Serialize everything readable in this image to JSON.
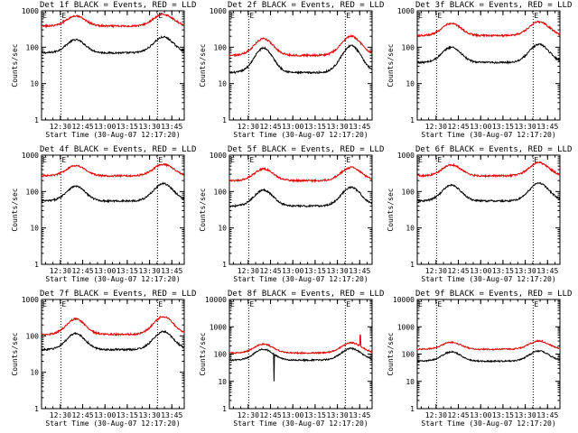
{
  "figure": {
    "x_start_label": "Start Time (30-Aug-07 12:17:20)",
    "y_label": "Counts/sec",
    "series_names": [
      "BLACK = Events",
      "RED = LLD"
    ],
    "colors": {
      "events": "#000000",
      "lld": "#e00000",
      "background": "#ffffff"
    }
  },
  "chart_data": [
    {
      "type": "line",
      "panel": 1,
      "title": "Det 1f BLACK = Events, RED = LLD",
      "xlabel": "Start Time (30-Aug-07 12:17:20)",
      "ylabel": "Counts/sec",
      "x_unit": "minutes since 12:17:20",
      "xlim": [
        0,
        96
      ],
      "xtick_labels": [
        "12:30",
        "12:45",
        "13:00",
        "13:15",
        "13:30",
        "13:45"
      ],
      "ylim": [
        1,
        1000
      ],
      "yscale": "log",
      "ytick_labels": [
        "1",
        "10",
        "100",
        "1000"
      ],
      "markers": [
        {
          "x": 13,
          "label": "E"
        },
        {
          "x": 78,
          "label": "E"
        }
      ],
      "series": [
        {
          "name": "Events",
          "color": "#000000",
          "base": 70,
          "peak1": 160,
          "peak2": 190,
          "dips": []
        },
        {
          "name": "LLD",
          "color": "#e00000",
          "base": 380,
          "peak1": 720,
          "peak2": 800,
          "dips": []
        }
      ]
    },
    {
      "type": "line",
      "panel": 2,
      "title": "Det 2f BLACK = Events, RED = LLD",
      "xlabel": "Start Time (30-Aug-07 12:17:20)",
      "ylabel": "Counts/sec",
      "x_unit": "minutes since 12:17:20",
      "xlim": [
        0,
        96
      ],
      "xtick_labels": [
        "12:30",
        "12:45",
        "13:00",
        "13:15",
        "13:30",
        "13:45"
      ],
      "ylim": [
        1,
        1000
      ],
      "yscale": "log",
      "ytick_labels": [
        "1",
        "10",
        "100",
        "1000"
      ],
      "markers": [
        {
          "x": 13,
          "label": "E"
        },
        {
          "x": 78,
          "label": "E"
        }
      ],
      "series": [
        {
          "name": "Events",
          "color": "#000000",
          "base": 20,
          "peak1": 95,
          "peak2": 110,
          "dips": []
        },
        {
          "name": "LLD",
          "color": "#e00000",
          "base": 60,
          "peak1": 170,
          "peak2": 200,
          "dips": []
        }
      ]
    },
    {
      "type": "line",
      "panel": 3,
      "title": "Det 3f BLACK = Events, RED = LLD",
      "xlabel": "Start Time (30-Aug-07 12:17:20)",
      "ylabel": "Counts/sec",
      "x_unit": "minutes since 12:17:20",
      "xlim": [
        0,
        96
      ],
      "xtick_labels": [
        "12:30",
        "12:45",
        "13:00",
        "13:15",
        "13:30",
        "13:45"
      ],
      "ylim": [
        1,
        1000
      ],
      "yscale": "log",
      "ytick_labels": [
        "1",
        "10",
        "100",
        "1000"
      ],
      "markers": [
        {
          "x": 13,
          "label": "E"
        },
        {
          "x": 78,
          "label": "E"
        }
      ],
      "series": [
        {
          "name": "Events",
          "color": "#000000",
          "base": 38,
          "peak1": 100,
          "peak2": 120,
          "dips": []
        },
        {
          "name": "LLD",
          "color": "#e00000",
          "base": 210,
          "peak1": 450,
          "peak2": 500,
          "dips": []
        }
      ]
    },
    {
      "type": "line",
      "panel": 4,
      "title": "Det 4f BLACK = Events, RED = LLD",
      "xlabel": "Start Time (30-Aug-07 12:17:20)",
      "ylabel": "Counts/sec",
      "x_unit": "minutes since 12:17:20",
      "xlim": [
        0,
        96
      ],
      "xtick_labels": [
        "12:30",
        "12:45",
        "13:00",
        "13:15",
        "13:30",
        "13:45"
      ],
      "ylim": [
        1,
        1000
      ],
      "yscale": "log",
      "ytick_labels": [
        "1",
        "10",
        "100",
        "1000"
      ],
      "markers": [
        {
          "x": 13,
          "label": "E"
        },
        {
          "x": 78,
          "label": "E"
        }
      ],
      "series": [
        {
          "name": "Events",
          "color": "#000000",
          "base": 55,
          "peak1": 140,
          "peak2": 165,
          "dips": []
        },
        {
          "name": "LLD",
          "color": "#e00000",
          "base": 270,
          "peak1": 520,
          "peak2": 560,
          "dips": []
        }
      ]
    },
    {
      "type": "line",
      "panel": 5,
      "title": "Det 5f BLACK = Events, RED = LLD",
      "xlabel": "Start Time (30-Aug-07 12:17:20)",
      "ylabel": "Counts/sec",
      "x_unit": "minutes since 12:17:20",
      "xlim": [
        0,
        96
      ],
      "xtick_labels": [
        "12:30",
        "12:45",
        "13:00",
        "13:15",
        "13:30",
        "13:45"
      ],
      "ylim": [
        1,
        1000
      ],
      "yscale": "log",
      "ytick_labels": [
        "1",
        "10",
        "100",
        "1000"
      ],
      "markers": [
        {
          "x": 13,
          "label": "E"
        },
        {
          "x": 78,
          "label": "E"
        }
      ],
      "series": [
        {
          "name": "Events",
          "color": "#000000",
          "base": 40,
          "peak1": 110,
          "peak2": 130,
          "dips": []
        },
        {
          "name": "LLD",
          "color": "#e00000",
          "base": 200,
          "peak1": 420,
          "peak2": 460,
          "dips": []
        }
      ]
    },
    {
      "type": "line",
      "panel": 6,
      "title": "Det 6f BLACK = Events, RED = LLD",
      "xlabel": "Start Time (30-Aug-07 12:17:20)",
      "ylabel": "Counts/sec",
      "x_unit": "minutes since 12:17:20",
      "xlim": [
        0,
        96
      ],
      "xtick_labels": [
        "12:30",
        "12:45",
        "13:00",
        "13:15",
        "13:30",
        "13:45"
      ],
      "ylim": [
        1,
        1000
      ],
      "yscale": "log",
      "ytick_labels": [
        "1",
        "10",
        "100",
        "1000"
      ],
      "markers": [
        {
          "x": 13,
          "label": "E"
        },
        {
          "x": 78,
          "label": "E"
        }
      ],
      "series": [
        {
          "name": "Events",
          "color": "#000000",
          "base": 55,
          "peak1": 150,
          "peak2": 170,
          "dips": []
        },
        {
          "name": "LLD",
          "color": "#e00000",
          "base": 270,
          "peak1": 540,
          "peak2": 620,
          "dips": []
        }
      ]
    },
    {
      "type": "line",
      "panel": 7,
      "title": "Det 7f BLACK = Events, RED = LLD",
      "xlabel": "Start Time (30-Aug-07 12:17:20)",
      "ylabel": "Counts/sec",
      "x_unit": "minutes since 12:17:20",
      "xlim": [
        0,
        96
      ],
      "xtick_labels": [
        "12:30",
        "12:45",
        "13:00",
        "13:15",
        "13:30",
        "13:45"
      ],
      "ylim": [
        1,
        1000
      ],
      "yscale": "log",
      "ytick_labels": [
        "1",
        "10",
        "100",
        "1000"
      ],
      "markers": [
        {
          "x": 13,
          "label": "E"
        },
        {
          "x": 78,
          "label": "E"
        }
      ],
      "series": [
        {
          "name": "Events",
          "color": "#000000",
          "base": 42,
          "peak1": 115,
          "peak2": 130,
          "dips": []
        },
        {
          "name": "LLD",
          "color": "#e00000",
          "base": 110,
          "peak1": 290,
          "peak2": 340,
          "dips": []
        }
      ]
    },
    {
      "type": "line",
      "panel": 8,
      "title": "Det 8f BLACK = Events, RED = LLD",
      "xlabel": "Start Time (30-Aug-07 12:17:20)",
      "ylabel": "Counts/sec",
      "x_unit": "minutes since 12:17:20",
      "xlim": [
        0,
        96
      ],
      "xtick_labels": [
        "12:30",
        "12:45",
        "13:00",
        "13:15",
        "13:30",
        "13:45"
      ],
      "ylim": [
        1,
        10000
      ],
      "yscale": "log",
      "ytick_labels": [
        "1",
        "10",
        "100",
        "1000",
        "10000"
      ],
      "markers": [
        {
          "x": 13,
          "label": "E"
        },
        {
          "x": 78,
          "label": "E"
        }
      ],
      "series": [
        {
          "name": "Events",
          "color": "#000000",
          "base": 60,
          "peak1": 150,
          "peak2": 160,
          "dips": [
            {
              "x": 30,
              "value": 10
            }
          ]
        },
        {
          "name": "LLD",
          "color": "#e00000",
          "base": 110,
          "peak1": 230,
          "peak2": 260,
          "dips": [],
          "spikes": [
            {
              "x": 88,
              "value": 500
            }
          ]
        }
      ]
    },
    {
      "type": "line",
      "panel": 9,
      "title": "Det 9f BLACK = Events, RED = LLD",
      "xlabel": "Start Time (30-Aug-07 12:17:20)",
      "ylabel": "Counts/sec",
      "x_unit": "minutes since 12:17:20",
      "xlim": [
        0,
        96
      ],
      "xtick_labels": [
        "12:30",
        "12:45",
        "13:00",
        "13:15",
        "13:30",
        "13:45"
      ],
      "ylim": [
        1,
        10000
      ],
      "yscale": "log",
      "ytick_labels": [
        "1",
        "10",
        "100",
        "1000",
        "10000"
      ],
      "markers": [
        {
          "x": 13,
          "label": "E"
        },
        {
          "x": 78,
          "label": "E"
        }
      ],
      "series": [
        {
          "name": "Events",
          "color": "#000000",
          "base": 55,
          "peak1": 120,
          "peak2": 130,
          "dips": []
        },
        {
          "name": "LLD",
          "color": "#e00000",
          "base": 150,
          "peak1": 270,
          "peak2": 300,
          "dips": []
        }
      ]
    }
  ]
}
